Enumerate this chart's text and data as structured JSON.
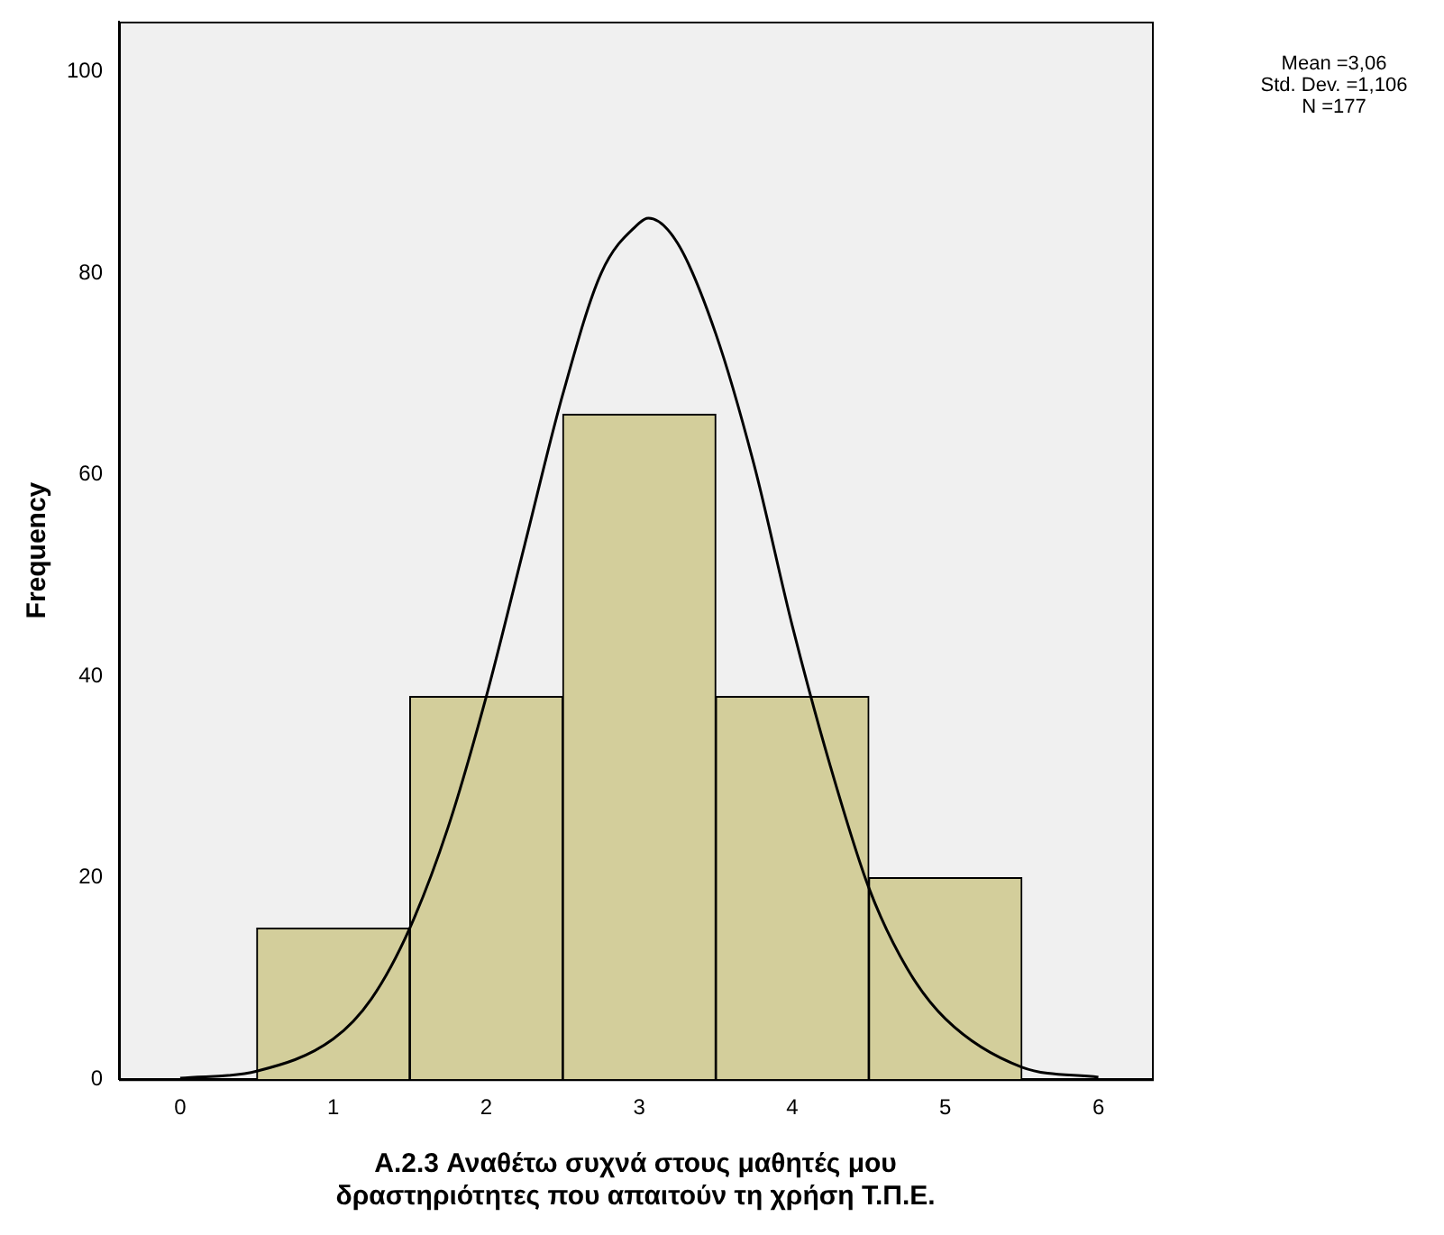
{
  "chart_data": {
    "type": "histogram",
    "xlabel": "A.2.3 Αναθέτω συχνά στους μαθητές μου\nδραστηριότητες που απαιτούν τη χρήση Τ.Π.Ε.",
    "ylabel": "Frequency",
    "bins": [
      0.5,
      1.5,
      2.5,
      3.5,
      4.5,
      5.5
    ],
    "values": [
      15,
      38,
      66,
      38,
      20
    ],
    "color": "#d3ce9b",
    "series": [
      {
        "type": "line",
        "color": "#000000",
        "x": [
          0,
          0.5,
          1,
          1.25,
          1.5,
          1.75,
          2,
          2.25,
          2.5,
          2.75,
          3,
          3.06,
          3.25,
          3.5,
          3.75,
          4,
          4.25,
          4.5,
          4.75,
          5,
          5.5,
          6
        ],
        "values": [
          0.1,
          0.8,
          4,
          8,
          15,
          25,
          38,
          53,
          68,
          80,
          85,
          85.5,
          83,
          74,
          61,
          45,
          31,
          19,
          11,
          6,
          1.2,
          0.2
        ]
      }
    ],
    "xlim": [
      -0.4,
      6.35
    ],
    "xticks": [
      0,
      1,
      2,
      3,
      4,
      5,
      6
    ],
    "ylim": [
      0,
      105
    ],
    "yticks": [
      0,
      20,
      40,
      60,
      80,
      100
    ],
    "annotations": [
      "Mean =3,06",
      "Std. Dev. =1,106",
      "N =177"
    ]
  }
}
